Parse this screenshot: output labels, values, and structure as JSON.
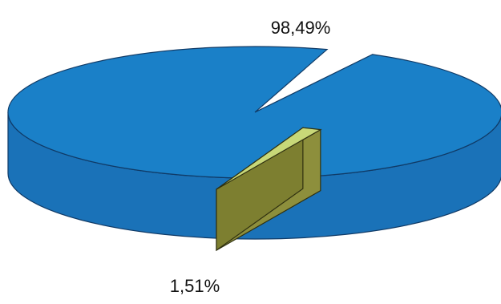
{
  "chart_data": {
    "type": "pie",
    "style": "3d-exploded",
    "slices": [
      {
        "label": "98,49%",
        "value": 98.49,
        "color": "#1a80c8",
        "exploded": false
      },
      {
        "label": "1,51%",
        "value": 1.51,
        "color": "#c8d878",
        "exploded": true
      }
    ],
    "legend": "none",
    "title": ""
  }
}
